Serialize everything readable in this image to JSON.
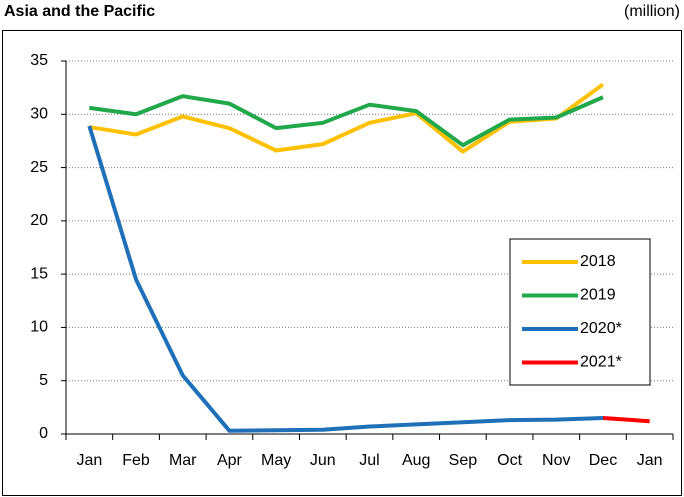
{
  "chart_data": {
    "type": "line",
    "title": "Asia and the Pacific",
    "unit": "(million)",
    "categories": [
      "Jan",
      "Feb",
      "Mar",
      "Apr",
      "May",
      "Jun",
      "Jul",
      "Aug",
      "Sep",
      "Oct",
      "Nov",
      "Dec",
      "Jan"
    ],
    "series": [
      {
        "name": "2018",
        "color": "#ffc000",
        "values": [
          28.8,
          28.1,
          29.8,
          28.7,
          26.6,
          27.2,
          29.2,
          30.1,
          26.5,
          29.3,
          29.6,
          32.8,
          null
        ]
      },
      {
        "name": "2019",
        "color": "#20a84a",
        "values": [
          30.6,
          30.0,
          31.7,
          31.0,
          28.7,
          29.2,
          30.9,
          30.3,
          27.1,
          29.5,
          29.7,
          31.6,
          null
        ]
      },
      {
        "name": "2020*",
        "color": "#1f70b8",
        "values": [
          28.9,
          14.5,
          5.5,
          0.3,
          0.35,
          0.4,
          0.7,
          0.9,
          1.1,
          1.3,
          1.35,
          1.5,
          null
        ]
      },
      {
        "name": "2021*",
        "color": "#ff0000",
        "values": [
          null,
          null,
          null,
          null,
          null,
          null,
          null,
          null,
          null,
          null,
          null,
          1.5,
          1.2
        ]
      }
    ],
    "ylim": [
      0,
      35
    ],
    "yticks": [
      0,
      5,
      10,
      15,
      20,
      25,
      30,
      35
    ],
    "grid": true,
    "legend": "right"
  }
}
